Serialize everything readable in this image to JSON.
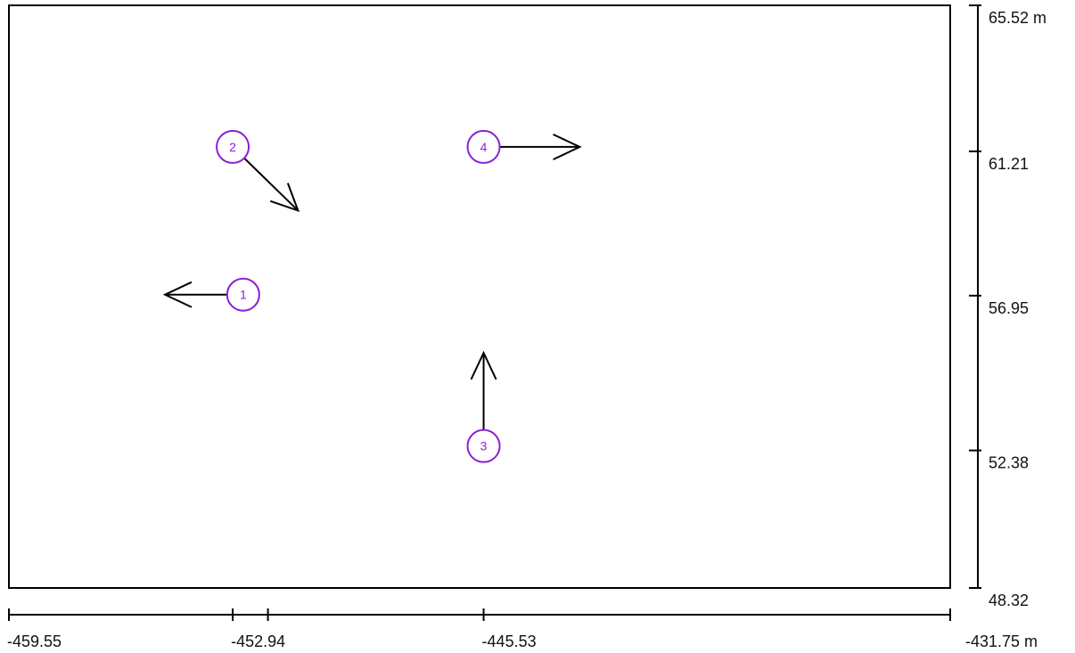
{
  "x_axis": {
    "range": [
      -459.55,
      -431.75
    ],
    "ticks": [
      {
        "value": -459.55,
        "label": "-459.55"
      },
      {
        "value": -452.94,
        "label": "-452.94"
      },
      {
        "value": -451.9,
        "label": ""
      },
      {
        "value": -445.53,
        "label": "-445.53"
      },
      {
        "value": -431.75,
        "label": "-431.75 m"
      }
    ]
  },
  "y_axis": {
    "range": [
      48.32,
      65.52
    ],
    "ticks": [
      {
        "value": 65.52,
        "label": "65.52 m"
      },
      {
        "value": 61.21,
        "label": "61.21"
      },
      {
        "value": 56.95,
        "label": "56.95"
      },
      {
        "value": 52.38,
        "label": "52.38"
      },
      {
        "value": 48.32,
        "label": "48.32"
      }
    ]
  },
  "markers": [
    {
      "label": "1",
      "x": -452.63,
      "y": 56.98,
      "arrow_to": {
        "x": -454.94,
        "y": 56.98
      }
    },
    {
      "label": "2",
      "x": -452.94,
      "y": 61.34,
      "arrow_to": {
        "x": -451.01,
        "y": 59.46
      }
    },
    {
      "label": "3",
      "x": -445.53,
      "y": 52.51,
      "arrow_to": {
        "x": -445.53,
        "y": 55.26
      }
    },
    {
      "label": "4",
      "x": -445.53,
      "y": 61.34,
      "arrow_to": {
        "x": -442.69,
        "y": 61.34
      }
    }
  ],
  "colors": {
    "marker": "#8a1fd6",
    "arrow": "#000000",
    "frame": "#000000"
  }
}
